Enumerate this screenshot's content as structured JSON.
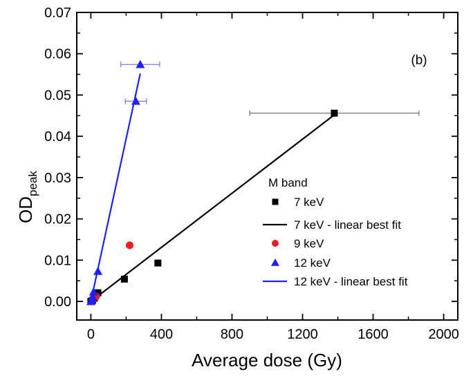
{
  "chart_data": {
    "type": "scatter",
    "xlabel": "Average dose (Gy)",
    "ylabel": "OD",
    "ylabel_subscript": "peak",
    "xlim": [
      -80,
      2080
    ],
    "ylim": [
      -0.0045,
      0.07
    ],
    "xticks": [
      0,
      400,
      800,
      1200,
      1600,
      2000
    ],
    "yticks": [
      0.0,
      0.01,
      0.02,
      0.03,
      0.04,
      0.05,
      0.06,
      0.07
    ],
    "xtick_labels": [
      "0",
      "400",
      "800",
      "1200",
      "1600",
      "2000"
    ],
    "ytick_labels": [
      "0.00",
      "0.01",
      "0.02",
      "0.03",
      "0.04",
      "0.05",
      "0.06",
      "0.07"
    ],
    "annotation": "(b)",
    "legend_title": "M band",
    "legend_position": "lower-right",
    "series": [
      {
        "name": "7 keV",
        "kind": "scatter",
        "marker": "square",
        "color": "#000000",
        "points": [
          {
            "x": 0,
            "y": 0.0
          },
          {
            "x": 5,
            "y": 0.0001
          },
          {
            "x": 10,
            "y": 0.0003
          },
          {
            "x": 20,
            "y": 0.0008
          },
          {
            "x": 40,
            "y": 0.0021
          },
          {
            "x": 190,
            "y": 0.0054
          },
          {
            "x": 380,
            "y": 0.0093
          },
          {
            "x": 1380,
            "y": 0.0456,
            "xerr_low": 900,
            "xerr_high": 1860
          }
        ]
      },
      {
        "name": "7 keV - linear best fit",
        "kind": "line",
        "color": "#000000",
        "points": [
          {
            "x": 0,
            "y": 0.0
          },
          {
            "x": 1380,
            "y": 0.0452
          }
        ]
      },
      {
        "name": "9 keV",
        "kind": "scatter",
        "marker": "circle",
        "color": "#ee1c25",
        "points": [
          {
            "x": 10,
            "y": 0.0005
          },
          {
            "x": 30,
            "y": 0.0012
          },
          {
            "x": 220,
            "y": 0.0136
          }
        ]
      },
      {
        "name": "12 keV",
        "kind": "scatter",
        "marker": "triangle",
        "color": "#1f1fff",
        "points": [
          {
            "x": 0,
            "y": 0.0
          },
          {
            "x": 5,
            "y": 0.0005
          },
          {
            "x": 10,
            "y": 0.0011
          },
          {
            "x": 15,
            "y": 0.0023
          },
          {
            "x": 40,
            "y": 0.0073
          },
          {
            "x": 255,
            "y": 0.0485,
            "xerr_low": 195,
            "xerr_high": 315
          },
          {
            "x": 280,
            "y": 0.0574,
            "xerr_low": 170,
            "xerr_high": 390
          }
        ]
      },
      {
        "name": "12 keV - linear best fit",
        "kind": "line",
        "color": "#1f1fff",
        "points": [
          {
            "x": 0,
            "y": 0.0
          },
          {
            "x": 280,
            "y": 0.0552
          }
        ]
      }
    ]
  }
}
